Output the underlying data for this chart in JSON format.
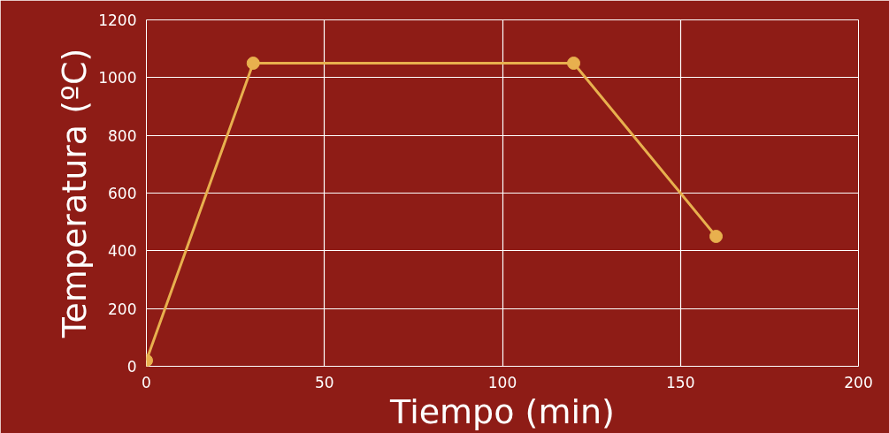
{
  "chart_data": {
    "type": "line",
    "xlabel": "Tiempo (min)",
    "ylabel": "Temperatura (ºC)",
    "x": [
      0,
      30,
      120,
      160
    ],
    "series": [
      {
        "color": "#e8b04e",
        "values": [
          20,
          1050,
          1050,
          450
        ]
      }
    ],
    "xlim": [
      0,
      200
    ],
    "xticks": [
      0,
      50,
      100,
      150,
      200
    ],
    "ylim": [
      0,
      1200
    ],
    "yticks": [
      0,
      200,
      400,
      600,
      800,
      1000,
      1200
    ],
    "grid": true,
    "marker": "circle",
    "line_style": "solid"
  }
}
